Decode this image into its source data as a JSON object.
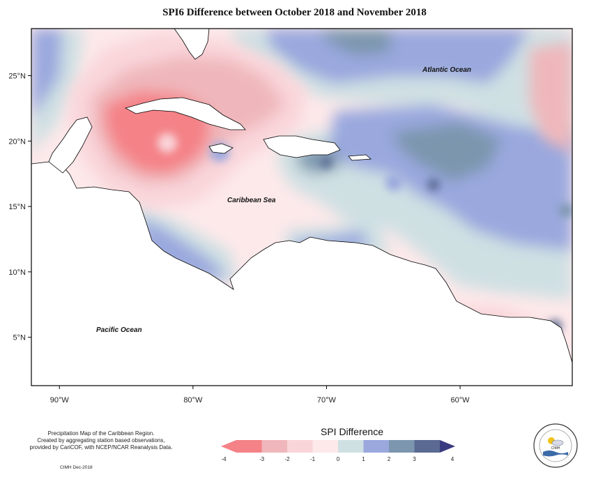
{
  "title": "SPI6 Difference between October 2018 and November 2018",
  "map": {
    "lon_range": [
      -92.1,
      -51.6
    ],
    "lat_range": [
      1.3,
      28.6
    ],
    "lon_ticks": [
      {
        "value": -90,
        "label": "90°W"
      },
      {
        "value": -80,
        "label": "80°W"
      },
      {
        "value": -70,
        "label": "70°W"
      },
      {
        "value": -60,
        "label": "60°W"
      }
    ],
    "lat_ticks": [
      {
        "value": 25,
        "label": "25°N"
      },
      {
        "value": 20,
        "label": "20°N"
      },
      {
        "value": 15,
        "label": "15°N"
      },
      {
        "value": 10,
        "label": "10°N"
      },
      {
        "value": 5,
        "label": "5°N"
      }
    ],
    "labels": {
      "atlantic": "Atlantic Ocean",
      "caribbean": "Caribbean Sea",
      "pacific": "Pacific Ocean"
    },
    "colors": {
      "m4": "#f48287",
      "m3": "#efb7bb",
      "m2": "#f9d5da",
      "m1": "#fde9ea",
      "p0": "#cfe0e3",
      "p1": "#9aa8de",
      "p2": "#7b96ae",
      "p3": "#5a6a93",
      "p4": "#3a3a80",
      "land": "#ffffff"
    }
  },
  "legend": {
    "title": "SPI Difference",
    "ticks": [
      "-4",
      "-3",
      "-2",
      "-1",
      "0",
      "1",
      "2",
      "3",
      "4"
    ]
  },
  "credits": {
    "line1": "Precipitation Map of the Caribbean Region.",
    "line2": "Created by aggregating station based observations,",
    "line3": "provided by CariCOF, with NCEP/NCAR Reanalysis Data.",
    "small": "CIMH Dec-2018"
  }
}
